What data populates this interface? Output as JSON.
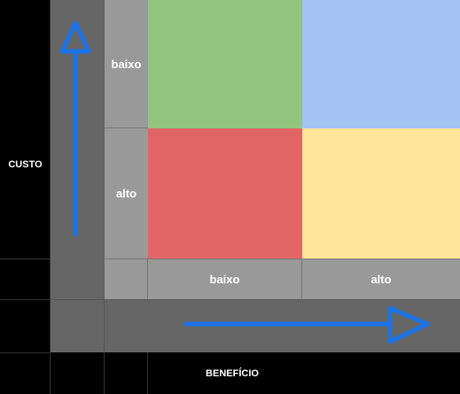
{
  "matrix": {
    "y_axis": {
      "title": "CUSTO",
      "low": "baixo",
      "high": "alto"
    },
    "x_axis": {
      "title": "BENEFÍCIO",
      "low": "baixo",
      "high": "alto"
    },
    "quadrants": {
      "low_cost_low_benefit": {
        "color": "#93c47d"
      },
      "low_cost_high_benefit": {
        "color": "#a4c2f4"
      },
      "high_cost_low_benefit": {
        "color": "#e06666"
      },
      "high_cost_high_benefit": {
        "color": "#ffe599"
      }
    },
    "colors": {
      "arrow": "#1a73e8",
      "label_bg": "#999999",
      "axis_band": "#666666",
      "background": "#000000"
    }
  }
}
